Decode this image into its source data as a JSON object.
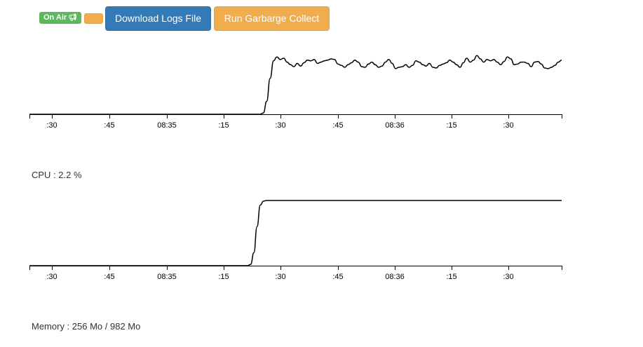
{
  "toolbar": {
    "status_badge": "On Air",
    "status_icon": "megaphone-icon",
    "download_label": "Download Logs File",
    "gc_label": "Run Garbarge Collect"
  },
  "colors": {
    "success": "#5cb85c",
    "primary": "#337ab7",
    "warning": "#f0ad4e"
  },
  "cpu": {
    "label": "CPU : 2.2 %"
  },
  "memory": {
    "label": "Memory : 256 Mo / 982 Mo"
  },
  "chart_data": [
    {
      "type": "line",
      "x_tick_labels": [
        ":30",
        ":45",
        "08:35",
        ":15",
        ":30",
        ":45",
        "08:36",
        ":15",
        ":30"
      ],
      "series": [
        {
          "values": [
            0,
            0,
            0,
            0,
            0,
            0,
            0,
            0,
            0,
            0,
            0,
            0,
            0,
            0,
            0,
            0,
            0,
            0,
            0,
            0,
            0,
            0,
            0,
            0,
            0,
            0,
            0,
            0,
            0,
            0,
            0,
            0,
            0,
            0,
            0,
            0,
            0,
            0,
            0,
            0,
            0,
            0,
            0,
            0,
            0,
            0,
            0,
            0,
            0,
            0,
            0,
            0,
            0,
            0,
            0,
            0,
            0,
            0,
            0,
            0,
            0,
            0,
            0,
            0,
            0,
            0,
            0,
            0,
            0,
            2,
            20,
            55,
            82,
            88,
            84,
            86,
            80,
            76,
            73,
            78,
            74,
            79,
            83,
            82,
            84,
            78,
            80,
            82,
            83,
            85,
            84,
            77,
            75,
            72,
            76,
            79,
            83,
            80,
            73,
            72,
            77,
            80,
            76,
            72,
            74,
            80,
            84,
            78,
            70,
            72,
            73,
            76,
            72,
            75,
            82,
            80,
            76,
            74,
            78,
            72,
            71,
            75,
            77,
            79,
            83,
            80,
            76,
            72,
            79,
            86,
            80,
            83,
            90,
            85,
            80,
            84,
            82,
            84,
            80,
            76,
            81,
            88,
            85,
            76,
            77,
            80,
            80,
            78,
            73,
            80,
            81,
            77,
            71,
            70,
            72,
            75,
            80,
            83
          ]
        }
      ],
      "ylim": [
        0,
        100
      ]
    },
    {
      "type": "line",
      "x_tick_labels": [
        ":30",
        ":45",
        "08:35",
        ":15",
        ":30",
        ":45",
        "08:36",
        ":15",
        ":30"
      ],
      "series": [
        {
          "values": [
            0,
            0,
            0,
            0,
            0,
            0,
            0,
            0,
            0,
            0,
            0,
            0,
            0,
            0,
            0,
            0,
            0,
            0,
            0,
            0,
            0,
            0,
            0,
            0,
            0,
            0,
            0,
            0,
            0,
            0,
            0,
            0,
            0,
            0,
            0,
            0,
            0,
            0,
            0,
            0,
            0,
            0,
            0,
            0,
            0,
            0,
            0,
            0,
            0,
            0,
            0,
            0,
            0,
            0,
            0,
            0,
            0,
            0,
            0,
            0,
            0,
            0,
            0,
            0,
            0,
            0,
            0,
            0,
            0,
            2,
            20,
            60,
            93,
            99,
            100,
            100,
            100,
            100,
            100,
            100,
            100,
            100,
            100,
            100,
            100,
            100,
            100,
            100,
            100,
            100,
            100,
            100,
            100,
            100,
            100,
            100,
            100,
            100,
            100,
            100,
            100,
            100,
            100,
            100,
            100,
            100,
            100,
            100,
            100,
            100,
            100,
            100,
            100,
            100,
            100,
            100,
            100,
            100,
            100,
            100,
            100,
            100,
            100,
            100,
            100,
            100,
            100,
            100,
            100,
            100,
            100,
            100,
            100,
            100,
            100,
            100,
            100,
            100,
            100,
            100,
            100,
            100,
            100,
            100,
            100,
            100,
            100,
            100,
            100,
            100,
            100,
            100,
            100,
            100,
            100,
            100,
            100,
            100,
            100,
            100,
            100,
            100,
            100,
            100,
            100,
            100,
            100
          ]
        }
      ],
      "ylim": [
        0,
        100
      ]
    }
  ]
}
